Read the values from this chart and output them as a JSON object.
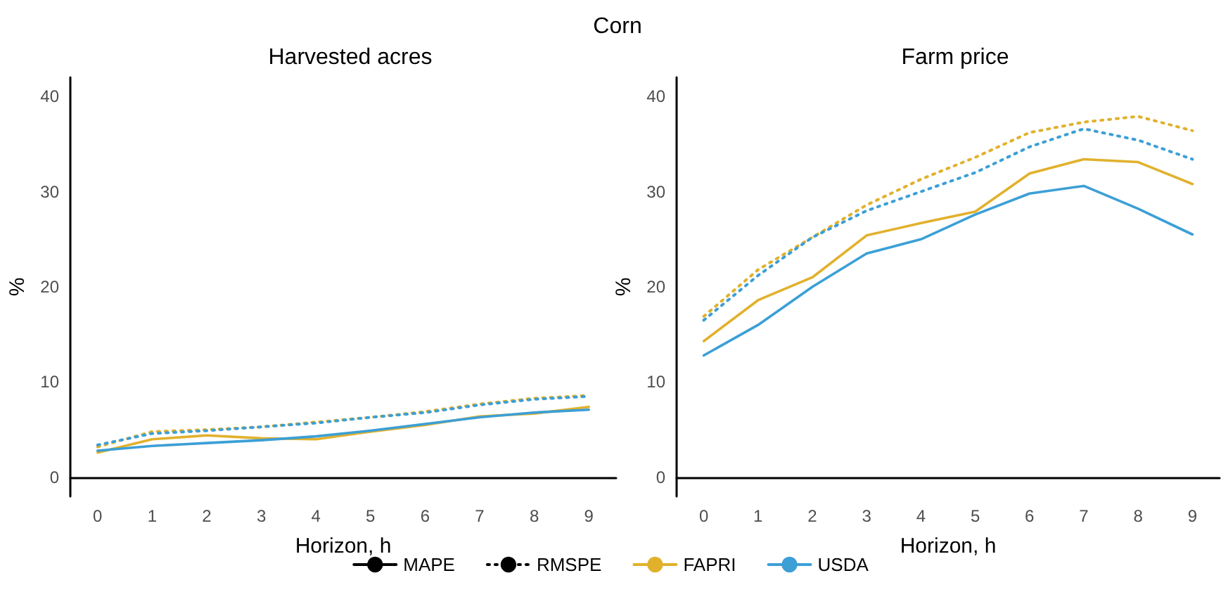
{
  "chart_data": [
    {
      "type": "line",
      "title": "Harvested acres",
      "xlabel": "Horizon, h",
      "ylabel": "%",
      "annotations": [
        "Corn"
      ],
      "categories": [
        "0",
        "1",
        "2",
        "3",
        "4",
        "5",
        "6",
        "7",
        "8",
        "9"
      ],
      "ylim": [
        -2,
        42
      ],
      "yticks": [
        0,
        10,
        20,
        30,
        40
      ],
      "grid": false,
      "legend": "bottom",
      "marker": "none",
      "series": [
        {
          "name": "MAPE",
          "color": "#000000",
          "line_style": "solid",
          "values": [
            null,
            null,
            null,
            null,
            null,
            null,
            null,
            null,
            null,
            null
          ]
        },
        {
          "name": "RMSPE",
          "color": "#000000",
          "line_style": "dotted",
          "values": [
            null,
            null,
            null,
            null,
            null,
            null,
            null,
            null,
            null,
            null
          ]
        },
        {
          "name": "FAPRI",
          "color": "#e1b12c",
          "line_style": "solid",
          "values": [
            2.6,
            4.0,
            4.4,
            4.1,
            4.0,
            4.8,
            5.5,
            6.4,
            6.7,
            7.4
          ]
        },
        {
          "name": "USDA",
          "color": "#3c9fd6",
          "line_style": "solid",
          "values": [
            2.8,
            3.3,
            3.6,
            3.9,
            4.3,
            4.9,
            5.6,
            6.3,
            6.8,
            7.1
          ]
        },
        {
          "color": "#e1b12c",
          "line_style": "dotted",
          "values": [
            3.2,
            4.8,
            5.0,
            5.3,
            5.8,
            6.3,
            6.9,
            7.7,
            8.3,
            8.6
          ]
        },
        {
          "color": "#3c9fd6",
          "line_style": "dotted",
          "values": [
            3.4,
            4.6,
            4.9,
            5.3,
            5.7,
            6.3,
            6.8,
            7.6,
            8.2,
            8.5
          ]
        }
      ]
    },
    {
      "type": "line",
      "title": "Farm price",
      "xlabel": "Horizon, h",
      "ylabel": "%",
      "categories": [
        "0",
        "1",
        "2",
        "3",
        "4",
        "5",
        "6",
        "7",
        "8",
        "9"
      ],
      "ylim": [
        -2,
        42
      ],
      "yticks": [
        0,
        10,
        20,
        30,
        40
      ],
      "grid": false,
      "marker": "none",
      "series": [
        {
          "color": "#e1b12c",
          "line_style": "solid",
          "values": [
            14.3,
            18.6,
            21.0,
            25.4,
            26.7,
            27.9,
            31.9,
            33.4,
            33.1,
            30.8
          ]
        },
        {
          "color": "#3c9fd6",
          "line_style": "solid",
          "values": [
            12.8,
            16.0,
            20.0,
            23.5,
            25.0,
            27.6,
            29.8,
            30.6,
            28.2,
            25.5
          ]
        },
        {
          "color": "#e1b12c",
          "line_style": "dotted",
          "values": [
            16.9,
            21.8,
            25.2,
            28.6,
            31.3,
            33.6,
            36.2,
            37.3,
            37.9,
            36.4
          ]
        },
        {
          "color": "#3c9fd6",
          "line_style": "dotted",
          "values": [
            16.5,
            21.2,
            25.2,
            28.0,
            30.0,
            32.0,
            34.7,
            36.6,
            35.4,
            33.4
          ]
        }
      ]
    }
  ]
}
